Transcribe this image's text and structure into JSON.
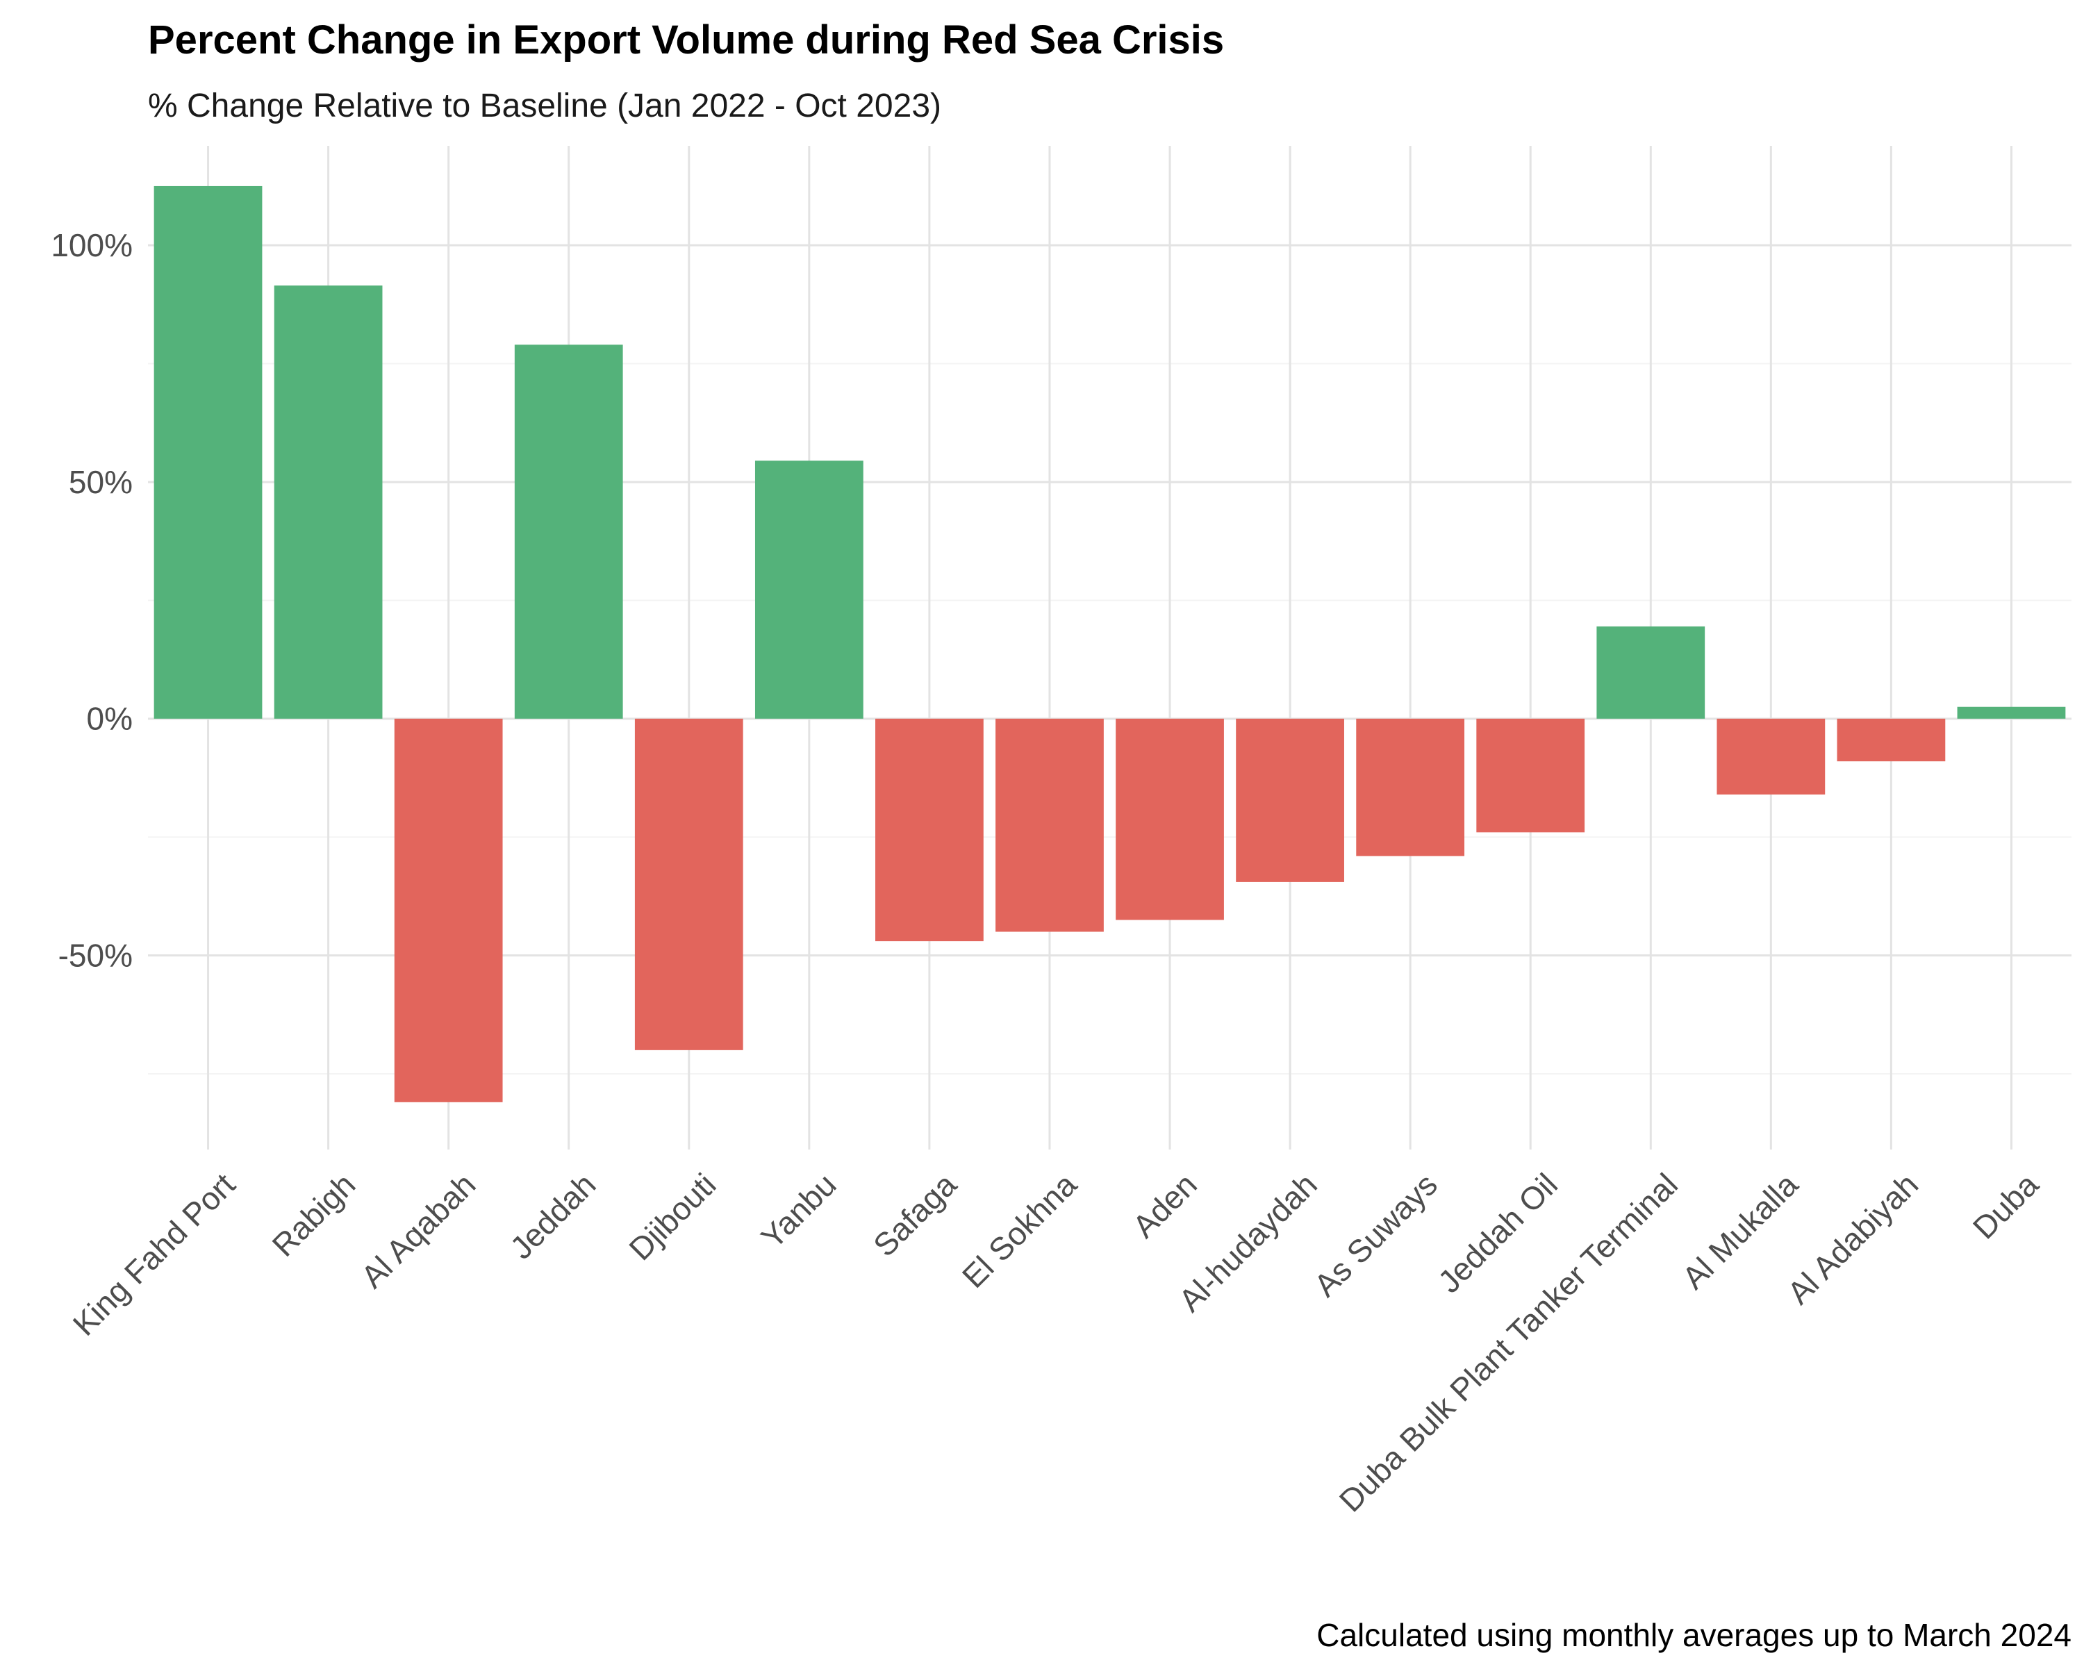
{
  "chart_data": {
    "type": "bar",
    "title": "Percent Change in Export Volume during Red Sea Crisis",
    "subtitle": "% Change Relative to Baseline (Jan 2022 - Oct 2023)",
    "caption": "Calculated using monthly averages up to March 2024",
    "xlabel": "",
    "ylabel": "",
    "categories": [
      "King Fahd Port",
      "Rabigh",
      "Al Aqabah",
      "Jeddah",
      "Djibouti",
      "Yanbu",
      "Safaga",
      "El Sokhna",
      "Aden",
      "Al-hudaydah",
      "As Suways",
      "Jeddah Oil",
      "Duba Bulk Plant Tanker Terminal",
      "Al Mukalla",
      "Al Adabiyah",
      "Duba"
    ],
    "values": [
      112.5,
      91.5,
      -81,
      79,
      -70,
      54.5,
      -47,
      -45,
      -42.5,
      -34.5,
      -29,
      -24,
      19.5,
      -16,
      -9,
      2.5
    ],
    "ylim": [
      -91,
      121
    ],
    "yticks": [
      100,
      50,
      0,
      -50
    ],
    "ytick_labels": [
      "100%",
      "50%",
      "0%",
      "-50%"
    ],
    "colors": {
      "positive": "#54b27a",
      "negative": "#e2655c"
    },
    "grid": true,
    "legend": "none"
  }
}
